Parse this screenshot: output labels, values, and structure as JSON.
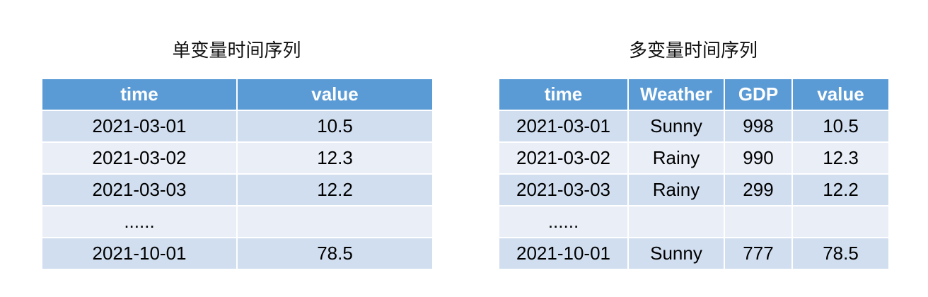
{
  "univariate": {
    "title": "单变量时间序列",
    "headers": [
      "time",
      "value"
    ],
    "rows": [
      [
        "2021-03-01",
        "10.5"
      ],
      [
        "2021-03-02",
        "12.3"
      ],
      [
        "2021-03-03",
        "12.2"
      ],
      [
        "......",
        ""
      ],
      [
        "2021-10-01",
        "78.5"
      ]
    ]
  },
  "multivariate": {
    "title": "多变量时间序列",
    "headers": [
      "time",
      "Weather",
      "GDP",
      "value"
    ],
    "rows": [
      [
        "2021-03-01",
        "Sunny",
        "998",
        "10.5"
      ],
      [
        "2021-03-02",
        "Rainy",
        "990",
        "12.3"
      ],
      [
        "2021-03-03",
        "Rainy",
        "299",
        "12.2"
      ],
      [
        "......",
        "",
        "",
        ""
      ],
      [
        "2021-10-01",
        "Sunny",
        "777",
        "78.5"
      ]
    ]
  },
  "colors": {
    "header_bg": "#5b9bd5",
    "row_odd_bg": "#d0deef",
    "row_even_bg": "#e9eef7"
  }
}
